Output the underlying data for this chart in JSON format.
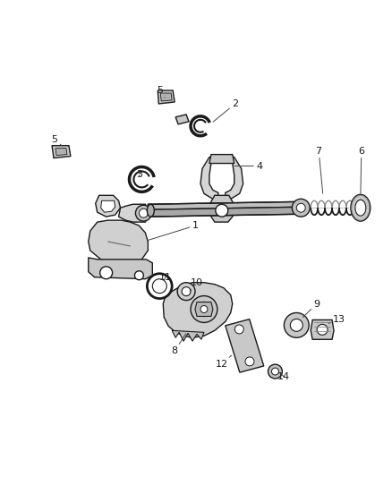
{
  "background_color": "#ffffff",
  "figure_width": 4.38,
  "figure_height": 5.33,
  "dpi": 100,
  "line_color": "#1a1a1a",
  "part_fill": "#d8d8d8",
  "part_dark": "#888888"
}
